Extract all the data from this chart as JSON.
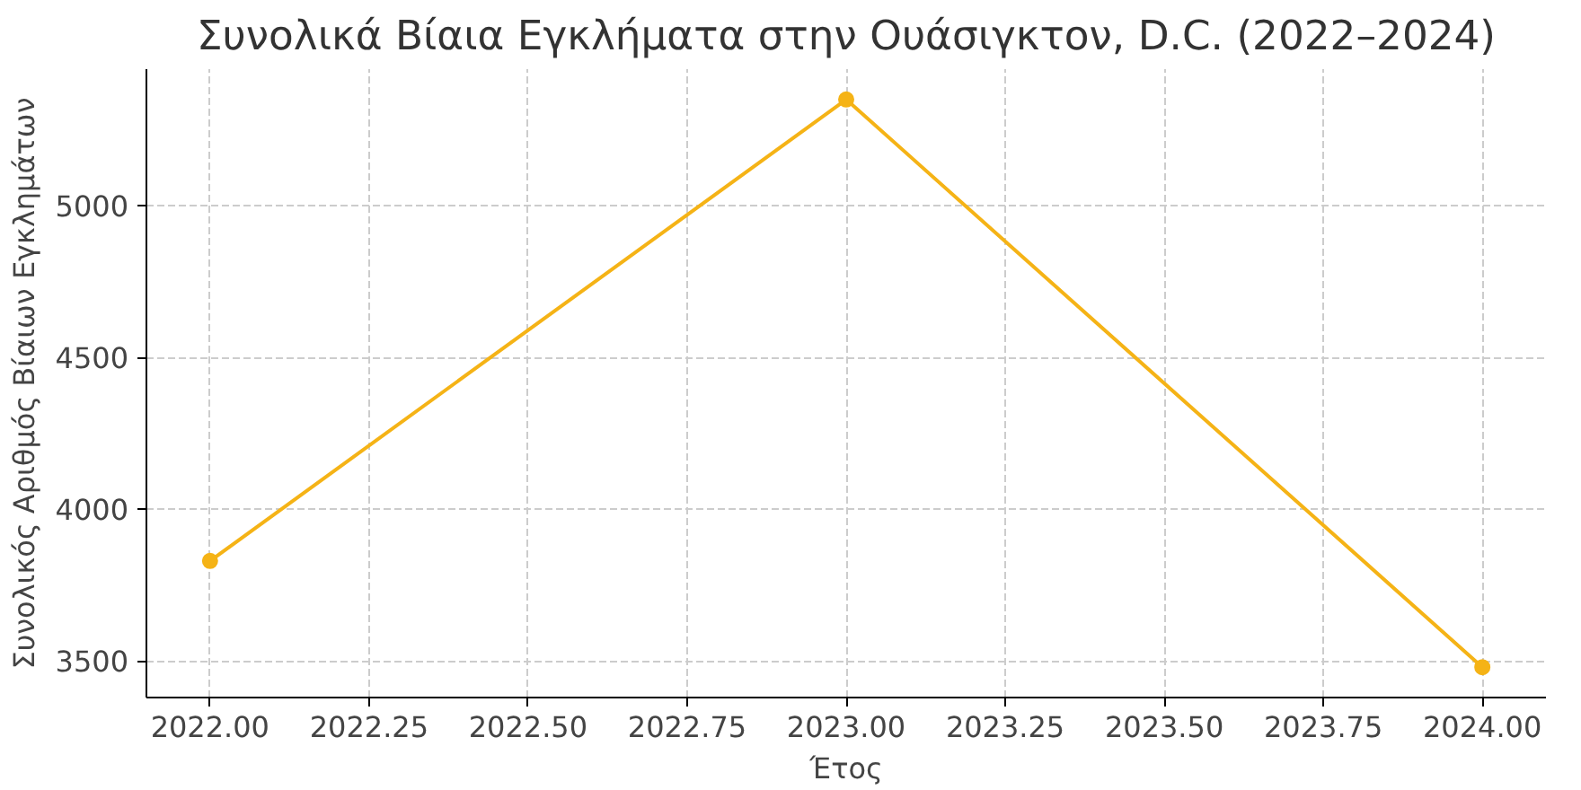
{
  "chart_data": {
    "type": "line",
    "title": "Συνολικά Βίαια Εγκλήματα στην Ουάσιγκτον, D.C. (2022–2024)",
    "xlabel": "Έτος",
    "ylabel": "Συνολικός Αριθμός Βίαιων Εγκλημάτων",
    "x": [
      2022,
      2023,
      2024
    ],
    "series": [
      {
        "color": "#f5b316",
        "values": [
          3830,
          5350,
          3480
        ]
      }
    ],
    "xlim": [
      2021.9,
      2024.1
    ],
    "xticks": [
      {
        "value": 2022,
        "label": "2022.00"
      },
      {
        "value": 2022.25,
        "label": "2022.25"
      },
      {
        "value": 2022.5,
        "label": "2022.50"
      },
      {
        "value": 2022.75,
        "label": "2022.75"
      },
      {
        "value": 2023,
        "label": "2023.00"
      },
      {
        "value": 2023.25,
        "label": "2023.25"
      },
      {
        "value": 2023.5,
        "label": "2023.50"
      },
      {
        "value": 2023.75,
        "label": "2023.75"
      },
      {
        "value": 2024,
        "label": "2024.00"
      }
    ],
    "ylim": [
      3380,
      5450
    ],
    "yticks": [
      3500,
      4000,
      4500,
      5000
    ],
    "grid": true,
    "marker": "circle",
    "line_style": "solid"
  }
}
